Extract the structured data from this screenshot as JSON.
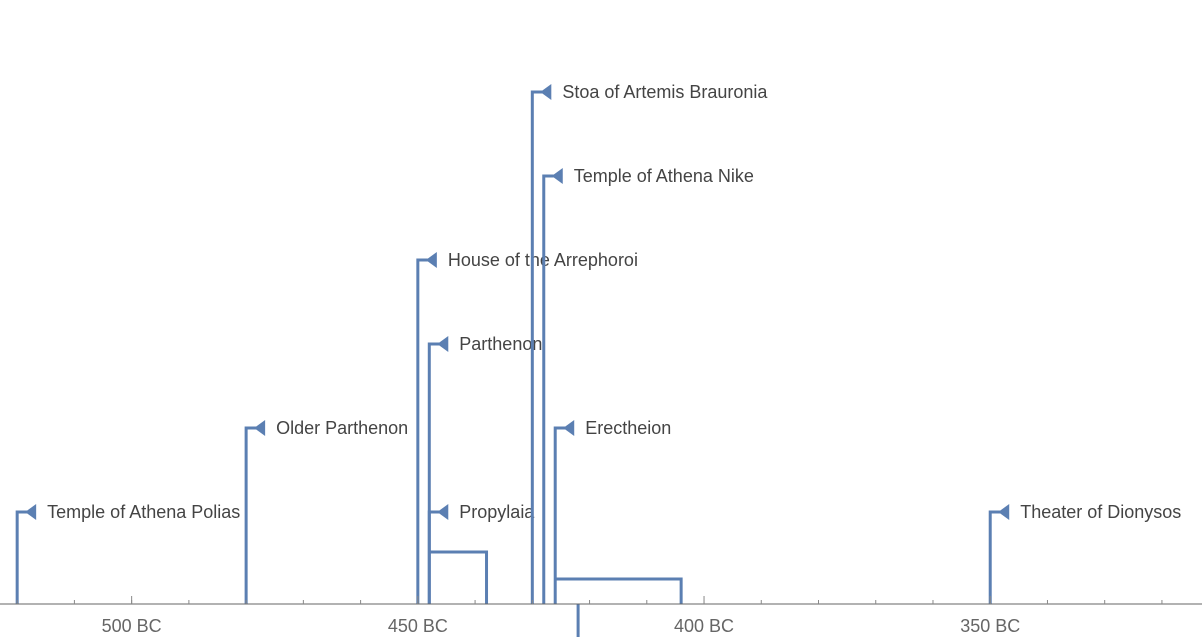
{
  "chart_data": {
    "type": "timeline",
    "title": "",
    "xlabel": "",
    "ylabel": "",
    "xlim": [
      -523,
      -313
    ],
    "major_ticks": [
      {
        "value": -500,
        "label": "500 BC"
      },
      {
        "value": -450,
        "label": "450 BC"
      },
      {
        "value": -400,
        "label": "400 BC"
      },
      {
        "value": -350,
        "label": "350 BC"
      }
    ],
    "minor_tick_step": 10,
    "line_color": "#5b7fb2",
    "events": [
      {
        "name": "Temple of Athena Polias",
        "start": -520,
        "end": null,
        "level": 1
      },
      {
        "name": "Older Parthenon",
        "start": -480,
        "end": null,
        "level": 2
      },
      {
        "name": "Propylaia",
        "start": -448,
        "end": -438,
        "level": 1
      },
      {
        "name": "Parthenon",
        "start": -448,
        "end": null,
        "level": 3
      },
      {
        "name": "House of the Arrephoroi",
        "start": -450,
        "end": null,
        "level": 4
      },
      {
        "name": "Erectheion",
        "start": -426,
        "end": -404,
        "level": 2
      },
      {
        "name": "Temple of Athena Nike",
        "start": -428,
        "end": -422,
        "level": 5
      },
      {
        "name": "Stoa of Artemis Brauronia",
        "start": -430,
        "end": null,
        "level": 6
      },
      {
        "name": "Theater of Dionysos",
        "start": -350,
        "end": null,
        "level": 1
      }
    ]
  }
}
